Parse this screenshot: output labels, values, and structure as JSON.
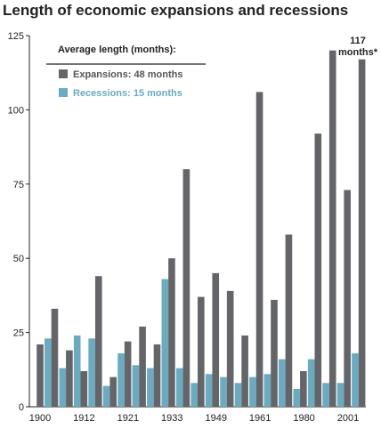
{
  "chart_data": {
    "type": "bar",
    "title": "Length of economic expansions and recessions",
    "xlabel": "",
    "ylabel": "",
    "ylim": [
      0,
      125
    ],
    "yticks": [
      0,
      25,
      50,
      75,
      100,
      125
    ],
    "xtick_labels": [
      "1900",
      "1912",
      "1921",
      "1933",
      "1949",
      "1961",
      "1980",
      "2001"
    ],
    "legend": {
      "title": "Average length (months):",
      "placement": "top-left",
      "entries": [
        "Expansions: 48 months",
        "Recessions: 15 months"
      ]
    },
    "colors": {
      "expansions": "#646569",
      "recessions": "#6baabf"
    },
    "pairs": [
      {
        "recession": 0,
        "expansion": 21
      },
      {
        "recession": 23,
        "expansion": 33
      },
      {
        "recession": 13,
        "expansion": 19
      },
      {
        "recession": 24,
        "expansion": 12
      },
      {
        "recession": 23,
        "expansion": 44
      },
      {
        "recession": 7,
        "expansion": 10
      },
      {
        "recession": 18,
        "expansion": 22
      },
      {
        "recession": 14,
        "expansion": 27
      },
      {
        "recession": 13,
        "expansion": 21
      },
      {
        "recession": 43,
        "expansion": 50
      },
      {
        "recession": 13,
        "expansion": 80
      },
      {
        "recession": 8,
        "expansion": 37
      },
      {
        "recession": 11,
        "expansion": 45
      },
      {
        "recession": 10,
        "expansion": 39
      },
      {
        "recession": 8,
        "expansion": 24
      },
      {
        "recession": 10,
        "expansion": 106
      },
      {
        "recession": 11,
        "expansion": 36
      },
      {
        "recession": 16,
        "expansion": 58
      },
      {
        "recession": 6,
        "expansion": 12
      },
      {
        "recession": 16,
        "expansion": 92
      },
      {
        "recession": 8,
        "expansion": 120
      },
      {
        "recession": 8,
        "expansion": 73
      },
      {
        "recession": 18,
        "expansion": 117
      }
    ],
    "annotation": {
      "line1": "117",
      "line2": "months*"
    }
  }
}
